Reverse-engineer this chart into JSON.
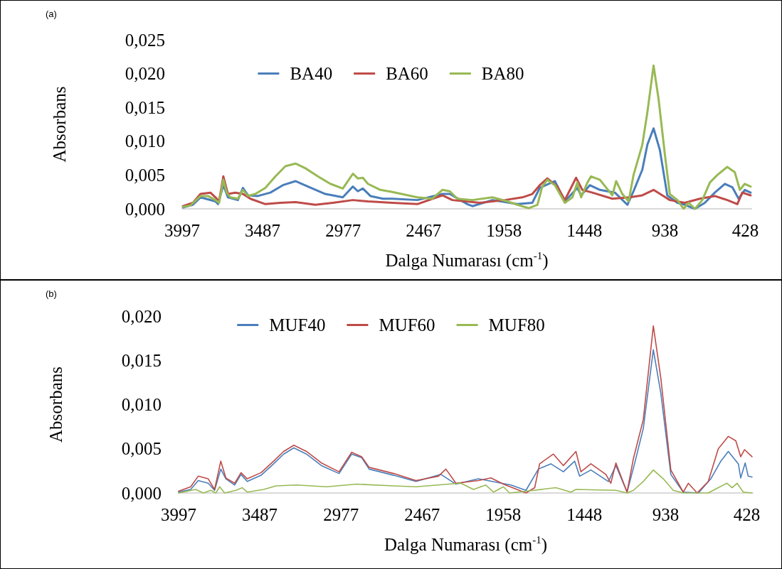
{
  "chart_data": [
    {
      "type": "line",
      "annotations": [
        "(a)"
      ],
      "xlabel": "Dalga Numarası (cm$^{-1}$)",
      "ylabel": "Absorbans",
      "xlim": [
        3997,
        390
      ],
      "xticks": [
        3997,
        3487,
        2977,
        2467,
        1958,
        1448,
        938,
        428
      ],
      "ylim": [
        0,
        0.025
      ],
      "yticks": [
        {
          "value": 0,
          "label": "0,000"
        },
        {
          "value": 0.005,
          "label": "0,005"
        },
        {
          "value": 0.01,
          "label": "0,010"
        },
        {
          "value": 0.015,
          "label": "0,015"
        },
        {
          "value": 0.02,
          "label": "0,020"
        },
        {
          "value": 0.025,
          "label": "0,025"
        }
      ],
      "grid": false,
      "legend": "top",
      "marker": "none",
      "line_style": "solid",
      "series": [
        {
          "name": "BA40",
          "color": "#4a7ebb",
          "x": [
            3992,
            3929,
            3881,
            3786,
            3770,
            3736,
            3707,
            3644,
            3612,
            3580,
            3517,
            3438,
            3359,
            3279,
            3200,
            3090,
            2979,
            2915,
            2884,
            2852,
            2804,
            2725,
            2665,
            2507,
            2348,
            2301,
            2190,
            2158,
            2031,
            1873,
            1778,
            1731,
            1635,
            1572,
            1493,
            1469,
            1414,
            1350,
            1255,
            1176,
            1137,
            1081,
            1049,
            1010,
            970,
            923,
            859,
            812,
            748,
            685,
            622,
            558,
            511,
            471,
            432,
            395
          ],
          "values": [
            0.0002,
            0.0006,
            0.0017,
            0.0011,
            0.0007,
            0.0035,
            0.0017,
            0.0013,
            0.0031,
            0.002,
            0.0019,
            0.0024,
            0.0035,
            0.0041,
            0.0033,
            0.0022,
            0.0017,
            0.0033,
            0.0026,
            0.003,
            0.0019,
            0.0015,
            0.0015,
            0.0013,
            0.0022,
            0.0022,
            0.0007,
            0.0004,
            0.0013,
            0.0007,
            0.0009,
            0.0031,
            0.0041,
            0.0011,
            0.0031,
            0.002,
            0.0035,
            0.0028,
            0.0024,
            0.0006,
            0.0026,
            0.0058,
            0.0095,
            0.0119,
            0.0087,
            0.002,
            0.0009,
            0.0006,
            0,
            0.0009,
            0.0024,
            0.0037,
            0.0032,
            0.0015,
            0.0028,
            0.0024
          ]
        },
        {
          "name": "BA60",
          "color": "#be4b48",
          "x": [
            3992,
            3929,
            3881,
            3818,
            3786,
            3763,
            3736,
            3707,
            3660,
            3612,
            3565,
            3470,
            3375,
            3279,
            3153,
            3042,
            2915,
            2820,
            2665,
            2507,
            2348,
            2285,
            2111,
            1952,
            1841,
            1778,
            1731,
            1683,
            1620,
            1572,
            1501,
            1461,
            1398,
            1271,
            1160,
            1081,
            1010,
            954,
            907,
            812,
            717,
            622,
            543,
            479,
            448,
            395
          ],
          "values": [
            0.0004,
            0.0009,
            0.0022,
            0.0024,
            0.0017,
            0.0011,
            0.0048,
            0.0022,
            0.0024,
            0.0022,
            0.0015,
            0.0007,
            0.0009,
            0.001,
            0.0006,
            0.0009,
            0.0013,
            0.0011,
            0.0009,
            0.0007,
            0.002,
            0.0013,
            0.0009,
            0.0013,
            0.0017,
            0.0022,
            0.0035,
            0.0045,
            0.0033,
            0.0013,
            0.0046,
            0.0028,
            0.0024,
            0.0015,
            0.0017,
            0.002,
            0.0028,
            0.002,
            0.0013,
            0.0009,
            0.0015,
            0.0019,
            0.0013,
            0.0007,
            0.0024,
            0.002
          ]
        },
        {
          "name": "BA80",
          "color": "#98b954",
          "x": [
            3992,
            3945,
            3881,
            3834,
            3786,
            3763,
            3736,
            3715,
            3691,
            3644,
            3612,
            3580,
            3533,
            3470,
            3406,
            3343,
            3279,
            3216,
            3137,
            3058,
            2979,
            2915,
            2884,
            2852,
            2820,
            2741,
            2665,
            2507,
            2412,
            2348,
            2301,
            2253,
            2158,
            2031,
            1936,
            1873,
            1802,
            1746,
            1715,
            1683,
            1635,
            1572,
            1524,
            1493,
            1469,
            1429,
            1406,
            1350,
            1271,
            1247,
            1208,
            1168,
            1137,
            1081,
            1049,
            1010,
            978,
            938,
            907,
            859,
            820,
            788,
            748,
            701,
            653,
            606,
            543,
            495,
            463,
            432,
            395
          ],
          "values": [
            0.0003,
            0.0005,
            0.0019,
            0.0019,
            0.0013,
            0.0009,
            0.0043,
            0.0024,
            0.0017,
            0.0015,
            0.0028,
            0.0019,
            0.0022,
            0.0031,
            0.0048,
            0.0063,
            0.0067,
            0.006,
            0.0048,
            0.0037,
            0.003,
            0.0052,
            0.0045,
            0.0046,
            0.0037,
            0.0028,
            0.0025,
            0.0017,
            0.0015,
            0.0028,
            0.0026,
            0.0015,
            0.0013,
            0.0017,
            0.0011,
            0.0006,
            0.0001,
            0.0006,
            0.0033,
            0.0043,
            0.0035,
            0.0009,
            0.0017,
            0.0039,
            0.0017,
            0.0039,
            0.0048,
            0.0043,
            0.002,
            0.0041,
            0.0022,
            0.0011,
            0.005,
            0.0095,
            0.0143,
            0.0212,
            0.0162,
            0.008,
            0.0022,
            0.0013,
            0,
            0.0009,
            0,
            0.0013,
            0.0039,
            0.005,
            0.0062,
            0.0054,
            0.0028,
            0.0037,
            0.0033
          ]
        }
      ]
    },
    {
      "type": "line",
      "annotations": [
        "(b)"
      ],
      "xlabel": "Dalga Numarası (cm$^{-1}$)",
      "ylabel": "Absorbans",
      "xlim": [
        3997,
        390
      ],
      "xticks": [
        3997,
        3487,
        2977,
        2467,
        1958,
        1448,
        938,
        428
      ],
      "ylim": [
        0,
        0.02
      ],
      "yticks": [
        {
          "value": 0,
          "label": "0,000"
        },
        {
          "value": 0.005,
          "label": "0,005"
        },
        {
          "value": 0.01,
          "label": "0,010"
        },
        {
          "value": 0.015,
          "label": "0,015"
        },
        {
          "value": 0.02,
          "label": "0,020"
        }
      ],
      "grid": false,
      "legend": "top",
      "marker": "none",
      "line_style": "solid",
      "series": [
        {
          "name": "MUF40",
          "color": "#4a7ebb",
          "x": [
            3997,
            3921,
            3874,
            3811,
            3771,
            3732,
            3700,
            3645,
            3605,
            3566,
            3479,
            3400,
            3337,
            3273,
            3194,
            3100,
            2989,
            2910,
            2847,
            2800,
            2645,
            2506,
            2349,
            2255,
            2114,
            1910,
            1815,
            1737,
            1659,
            1580,
            1509,
            1478,
            1407,
            1297,
            1250,
            1180,
            1133,
            1078,
            1015,
            968,
            905,
            827,
            732,
            654,
            591,
            544,
            481,
            466,
            438,
            419,
            395
          ],
          "values": [
            0.0001,
            0.0004,
            0.0014,
            0.0011,
            0.0003,
            0.0027,
            0.0016,
            0.0009,
            0.0021,
            0.0013,
            0.002,
            0.0033,
            0.0044,
            0.0051,
            0.0044,
            0.0031,
            0.0022,
            0.0044,
            0.004,
            0.0027,
            0.002,
            0.0013,
            0.0021,
            0.001,
            0.0016,
            0.0009,
            0.0003,
            0.0027,
            0.0033,
            0.0024,
            0.0036,
            0.0019,
            0.0026,
            0.0013,
            0.0031,
            0.0001,
            0.0033,
            0.0073,
            0.0162,
            0.0113,
            0.0021,
            0.0001,
            0,
            0.0016,
            0.0036,
            0.0047,
            0.0033,
            0.0017,
            0.0034,
            0.0019,
            0.0018
          ]
        },
        {
          "name": "MUF60",
          "color": "#be4b48",
          "x": [
            3997,
            3921,
            3874,
            3811,
            3771,
            3732,
            3700,
            3645,
            3605,
            3566,
            3479,
            3400,
            3337,
            3273,
            3194,
            3100,
            2989,
            2910,
            2847,
            2800,
            2645,
            2506,
            2365,
            2318,
            2255,
            2114,
            2035,
            1957,
            1815,
            1760,
            1729,
            1643,
            1580,
            1501,
            1470,
            1407,
            1313,
            1282,
            1250,
            1180,
            1140,
            1078,
            1015,
            968,
            905,
            827,
            795,
            740,
            670,
            607,
            544,
            497,
            466,
            442,
            395
          ],
          "values": [
            0.0002,
            0.0007,
            0.0019,
            0.0016,
            0.0004,
            0.0036,
            0.0017,
            0.0011,
            0.0023,
            0.0016,
            0.0023,
            0.0036,
            0.0047,
            0.0054,
            0.0047,
            0.0034,
            0.0024,
            0.0046,
            0.0041,
            0.0029,
            0.0022,
            0.0014,
            0.0019,
            0.0027,
            0.0011,
            0.0014,
            0.0017,
            0.001,
            0,
            0.0006,
            0.0033,
            0.0044,
            0.0031,
            0.0047,
            0.0024,
            0.0033,
            0.0021,
            0.0011,
            0.0034,
            0.0001,
            0.0039,
            0.0083,
            0.0189,
            0.013,
            0.0026,
            0.0001,
            0.0011,
            0,
            0.0013,
            0.005,
            0.0064,
            0.0059,
            0.0041,
            0.0049,
            0.0041
          ]
        },
        {
          "name": "MUF80",
          "color": "#98b954",
          "x": [
            3997,
            3890,
            3842,
            3795,
            3763,
            3739,
            3708,
            3637,
            3597,
            3566,
            3463,
            3384,
            3257,
            3068,
            2879,
            2645,
            2506,
            2302,
            2224,
            2145,
            2067,
            2019,
            1957,
            1918,
            1815,
            1627,
            1533,
            1501,
            1250,
            1180,
            1140,
            1078,
            1015,
            952,
            890,
            827,
            670,
            607,
            552,
            520,
            489,
            450,
            395
          ],
          "values": [
            0,
            0.0004,
            0,
            0.0003,
            0,
            0.0007,
            0,
            0.0003,
            0.0006,
            0.0001,
            0.0004,
            0.0008,
            0.0009,
            0.0007,
            0.001,
            0.0008,
            0.0007,
            0.001,
            0.0011,
            0.0004,
            0.0009,
            0.0001,
            0.0007,
            0,
            0.0002,
            0.0006,
            0.0001,
            0.0004,
            0.0003,
            0,
            0.0003,
            0.0013,
            0.0026,
            0.0016,
            0.0003,
            0,
            0,
            0.0006,
            0.0011,
            0.0006,
            0.0011,
            0.0001,
            0
          ]
        }
      ]
    }
  ]
}
